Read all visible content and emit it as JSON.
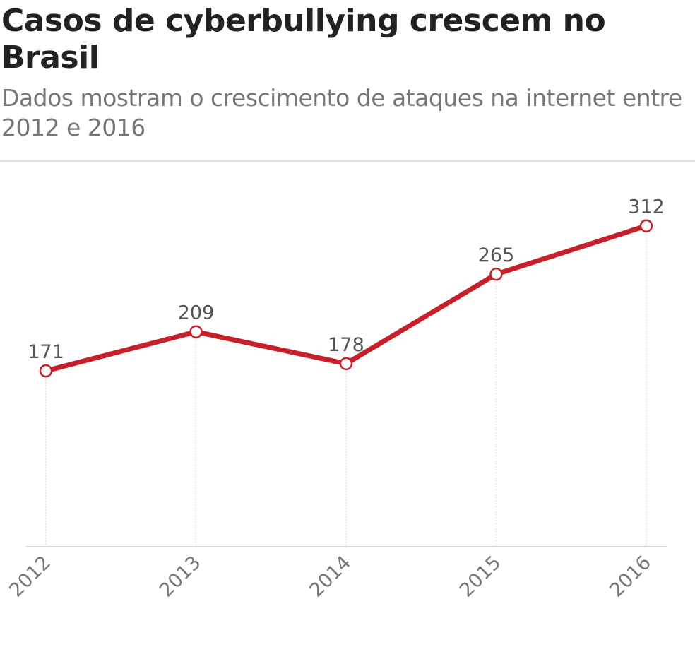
{
  "header": {
    "title": "Casos de cyberbullying crescem no Brasil",
    "subtitle": "Dados mostram o crescimento de ataques na internet entre 2012 e 2016"
  },
  "chart_data": {
    "type": "line",
    "title": "Casos de cyberbullying crescem no Brasil",
    "subtitle": "Dados mostram o crescimento de ataques na internet entre 2012 e 2016",
    "categories": [
      "2012",
      "2013",
      "2014",
      "2015",
      "2016"
    ],
    "values": [
      171,
      209,
      178,
      265,
      312
    ],
    "data_labels": [
      "171",
      "209",
      "178",
      "265",
      "312"
    ],
    "ylim": [
      0,
      320
    ],
    "xlabel": "",
    "ylabel": "",
    "grid": "vertical dotted lines at each category",
    "legend": "none",
    "line_color": "#c8202b",
    "marker_fill": "#ffffff"
  }
}
